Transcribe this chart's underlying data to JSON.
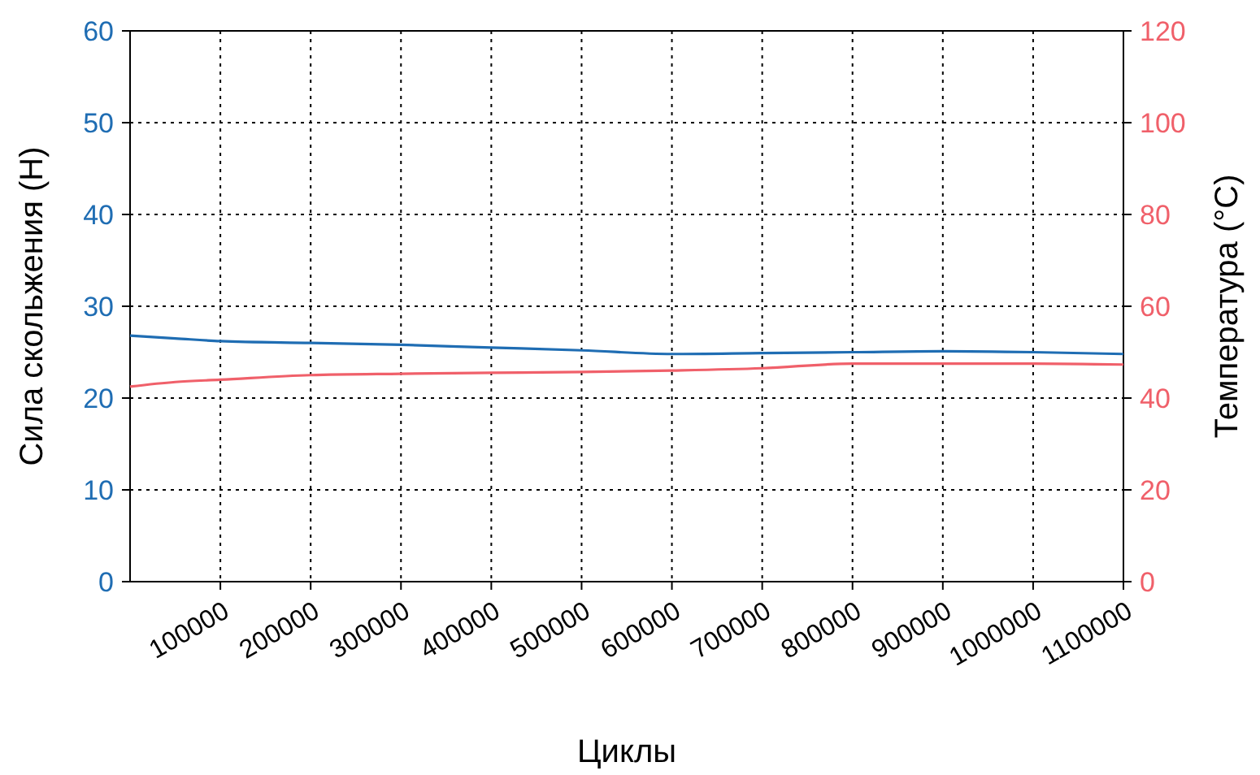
{
  "chart_data": {
    "type": "line",
    "xlabel": "Циклы",
    "ylabel": "Сила скольжения (Н)",
    "y2label": "Температура (°С)",
    "x": [
      0,
      50000,
      100000,
      200000,
      300000,
      400000,
      500000,
      600000,
      700000,
      800000,
      900000,
      1000000,
      1100000
    ],
    "series": [
      {
        "color": "#1f6db3",
        "values": [
          26.8,
          26.5,
          26.2,
          26,
          25.8,
          25.5,
          25.2,
          24.8,
          24.9,
          25,
          25.1,
          25,
          24.8
        ]
      },
      {
        "color": "#f0606a",
        "axis": "y2",
        "values": [
          42.5,
          43.5,
          44,
          45,
          45.3,
          45.5,
          45.7,
          46,
          46.5,
          47.5,
          47.5,
          47.5,
          47.3
        ]
      }
    ],
    "xlim": [
      0,
      1100000
    ],
    "xticks": [
      100000,
      200000,
      300000,
      400000,
      500000,
      600000,
      700000,
      800000,
      900000,
      1000000,
      1100000
    ],
    "ylim": [
      0,
      60
    ],
    "yticks": [
      0,
      10,
      20,
      30,
      40,
      50,
      60
    ],
    "y2lim": [
      0,
      120
    ],
    "y2ticks": [
      0,
      20,
      40,
      60,
      80,
      100,
      120
    ],
    "grid": true,
    "line_style": "solid",
    "marker": "none"
  }
}
